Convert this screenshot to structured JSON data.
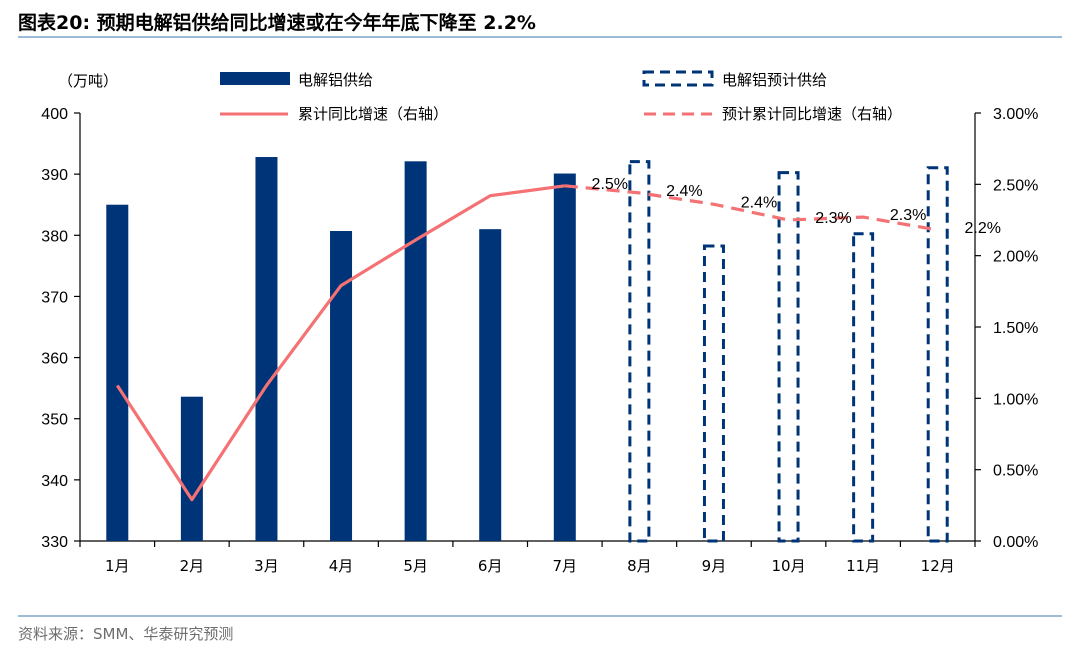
{
  "header": {
    "title": "图表20:  预期电解铝供给同比增速或在今年年底下降至 2.2%"
  },
  "footer": {
    "source": "资料来源：SMM、华泰研究预测"
  },
  "chart_data": {
    "type": "bar",
    "left_unit": "（万吨）",
    "categories": [
      "1月",
      "2月",
      "3月",
      "4月",
      "5月",
      "6月",
      "7月",
      "8月",
      "9月",
      "10月",
      "11月",
      "12月"
    ],
    "ylim": [
      330,
      400
    ],
    "yticks": [
      "330",
      "340",
      "350",
      "360",
      "370",
      "380",
      "390",
      "400"
    ],
    "ylim_right": [
      0,
      3
    ],
    "yticks_right": [
      "0.00%",
      "0.50%",
      "1.00%",
      "1.50%",
      "2.00%",
      "2.50%",
      "3.00%"
    ],
    "series": [
      {
        "name": "电解铝供给",
        "kind": "bar",
        "color": "#003478",
        "values": [
          385,
          353.6,
          392.8,
          380.7,
          392.1,
          381,
          390.1,
          null,
          null,
          null,
          null,
          null
        ]
      },
      {
        "name": "电解铝预计供给",
        "kind": "bar-dashed",
        "color": "#003478",
        "values": [
          null,
          null,
          null,
          null,
          null,
          null,
          null,
          392.3,
          378.5,
          390.5,
          380.5,
          391.3
        ]
      },
      {
        "name": "累计同比增速（右轴）",
        "kind": "line",
        "axis": "right",
        "color": "#f47174",
        "values": [
          1.09,
          0.29,
          1.09,
          1.79,
          2.11,
          2.42,
          2.49,
          null,
          null,
          null,
          null,
          null
        ]
      },
      {
        "name": "预计累计同比增速（右轴）",
        "kind": "line-dashed",
        "axis": "right",
        "color": "#f47174",
        "values": [
          null,
          null,
          null,
          null,
          null,
          null,
          2.49,
          2.44,
          2.36,
          2.25,
          2.27,
          2.18
        ]
      }
    ],
    "data_labels": [
      {
        "category": "7月",
        "text": "2.5%"
      },
      {
        "category": "8月",
        "text": "2.4%"
      },
      {
        "category": "9月",
        "text": "2.4%"
      },
      {
        "category": "10月",
        "text": "2.3%"
      },
      {
        "category": "11月",
        "text": "2.3%"
      },
      {
        "category": "12月",
        "text": "2.2%"
      }
    ],
    "legend_position": "top"
  }
}
